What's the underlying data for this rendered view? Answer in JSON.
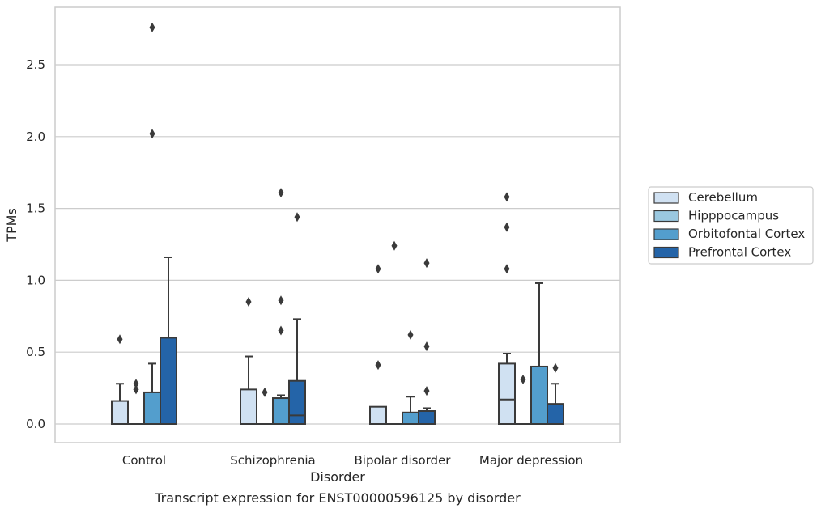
{
  "caption": "Transcript expression for ENST00000596125 by disorder",
  "chart_data": {
    "type": "boxplot",
    "title": "",
    "xlabel": "Disorder",
    "ylabel": "TPMs",
    "ylim": [
      -0.13,
      2.9
    ],
    "yticks": [
      0.0,
      0.5,
      1.0,
      1.5,
      2.0,
      2.5
    ],
    "ytick_labels": [
      "0.0",
      "0.5",
      "1.0",
      "1.5",
      "2.0",
      "2.5"
    ],
    "grid": "horizontal",
    "legend_position": "right",
    "categories": [
      "Control",
      "Schizophrenia",
      "Bipolar disorder",
      "Major depression"
    ],
    "series": [
      {
        "name": "Cerebellum",
        "color": "#d0e1f2",
        "boxes": [
          {
            "q1": 0,
            "median": 0,
            "q3": 0.16,
            "whisker_low": 0,
            "whisker_high": 0.28,
            "outliers": [
              0.59
            ]
          },
          {
            "q1": 0,
            "median": 0,
            "q3": 0.24,
            "whisker_low": 0,
            "whisker_high": 0.47,
            "outliers": [
              0.85
            ]
          },
          {
            "q1": 0,
            "median": 0,
            "q3": 0.12,
            "whisker_low": 0,
            "whisker_high": 0.12,
            "outliers": [
              0.41,
              1.08
            ]
          },
          {
            "q1": 0,
            "median": 0.17,
            "q3": 0.42,
            "whisker_low": 0,
            "whisker_high": 0.49,
            "outliers": [
              1.08,
              1.37,
              1.58
            ]
          }
        ]
      },
      {
        "name": "Hipppocampus",
        "color": "#9ac8e0",
        "boxes": [
          {
            "q1": 0,
            "median": 0,
            "q3": 0,
            "whisker_low": 0,
            "whisker_high": 0,
            "outliers": [
              0.24,
              0.28
            ]
          },
          {
            "q1": 0,
            "median": 0,
            "q3": 0,
            "whisker_low": 0,
            "whisker_high": 0,
            "outliers": [
              0.22
            ]
          },
          {
            "q1": 0,
            "median": 0,
            "q3": 0,
            "whisker_low": 0,
            "whisker_high": 0,
            "outliers": [
              1.24
            ]
          },
          {
            "q1": 0,
            "median": 0,
            "q3": 0,
            "whisker_low": 0,
            "whisker_high": 0,
            "outliers": [
              0.31
            ]
          }
        ]
      },
      {
        "name": "Orbitofontal Cortex",
        "color": "#539ecd",
        "boxes": [
          {
            "q1": 0,
            "median": 0,
            "q3": 0.22,
            "whisker_low": 0,
            "whisker_high": 0.42,
            "outliers": [
              2.02,
              2.76
            ]
          },
          {
            "q1": 0,
            "median": 0,
            "q3": 0.18,
            "whisker_low": 0,
            "whisker_high": 0.2,
            "outliers": [
              0.65,
              0.86,
              1.61
            ]
          },
          {
            "q1": 0,
            "median": 0,
            "q3": 0.08,
            "whisker_low": 0,
            "whisker_high": 0.19,
            "outliers": [
              0.62
            ]
          },
          {
            "q1": 0,
            "median": 0,
            "q3": 0.4,
            "whisker_low": 0,
            "whisker_high": 0.98,
            "outliers": []
          }
        ]
      },
      {
        "name": "Prefrontal Cortex",
        "color": "#2464a8",
        "boxes": [
          {
            "q1": 0,
            "median": 0,
            "q3": 0.6,
            "whisker_low": 0,
            "whisker_high": 1.16,
            "outliers": []
          },
          {
            "q1": 0,
            "median": 0.06,
            "q3": 0.3,
            "whisker_low": 0,
            "whisker_high": 0.73,
            "outliers": [
              1.44
            ]
          },
          {
            "q1": 0,
            "median": 0,
            "q3": 0.09,
            "whisker_low": 0,
            "whisker_high": 0.11,
            "outliers": [
              0.23,
              0.54,
              1.12
            ]
          },
          {
            "q1": 0,
            "median": 0,
            "q3": 0.14,
            "whisker_low": 0,
            "whisker_high": 0.28,
            "outliers": [
              0.39
            ]
          }
        ]
      }
    ]
  }
}
